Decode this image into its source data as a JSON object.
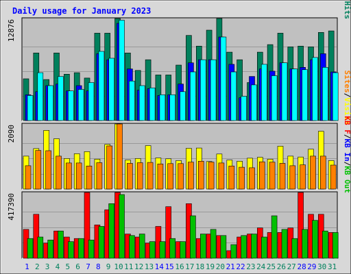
{
  "chart_data": {
    "type": "bar",
    "title": "Daily usage for January 2023",
    "categories": [
      "1",
      "2",
      "3",
      "4",
      "5",
      "6",
      "7",
      "8",
      "9",
      "10",
      "11",
      "12",
      "13",
      "14",
      "15",
      "16",
      "17",
      "18",
      "19",
      "20",
      "21",
      "22",
      "23",
      "24",
      "25",
      "26",
      "27",
      "28",
      "29",
      "30",
      "31"
    ],
    "weekend_days": [
      "1",
      "7",
      "8",
      "14",
      "15",
      "21",
      "22",
      "28",
      "29"
    ],
    "panels": [
      {
        "id": "hits",
        "ytick": "12876",
        "ymax": 12876,
        "series": [
          {
            "name": "Hits",
            "color": "#00805c",
            "values": [
              5500,
              8900,
              5400,
              8900,
              6100,
              6300,
              5600,
              11500,
              11500,
              15700,
              8900,
              6600,
              8000,
              6000,
              6000,
              7300,
              11200,
              9800,
              11900,
              15000,
              9000,
              8000,
              5000,
              9000,
              10000,
              11500,
              9700,
              9800,
              9700,
              11600,
              11800
            ]
          },
          {
            "name": "Files",
            "color": "#0000ff",
            "values": [
              3400,
              3800,
              4600,
              4800,
              3900,
              4600,
              3900,
              8800,
              8000,
              12800,
              6800,
              4000,
              4200,
              3300,
              3400,
              4800,
              7600,
              8000,
              8000,
              11000,
              7400,
              3000,
              5800,
              6800,
              6500,
              7600,
              6800,
              7000,
              8000,
              8800,
              6400
            ]
          },
          {
            "name": "Pages",
            "color": "#00ffff",
            "values": [
              3300,
              6300,
              4600,
              5800,
              3900,
              4100,
              5000,
              9100,
              8200,
              13200,
              5200,
              4600,
              4300,
              3400,
              3400,
              3800,
              6400,
              8000,
              8000,
              11000,
              6400,
              3200,
              4700,
              7400,
              5900,
              7600,
              6800,
              6700,
              8300,
              7000,
              6300
            ]
          }
        ]
      },
      {
        "id": "visits",
        "ytick": "2090",
        "ymax": 2090,
        "series": [
          {
            "name": "Visits",
            "color": "#ffff00",
            "values": [
              1100,
              1350,
              1960,
              1680,
              1020,
              1180,
              1250,
              1000,
              1490,
              2950,
              970,
              1020,
              1450,
              1040,
              1010,
              950,
              1360,
              1370,
              920,
              1170,
              970,
              930,
              1030,
              1060,
              1000,
              1430,
              1100,
              1070,
              1330,
              1930,
              950
            ]
          },
          {
            "name": "Sites",
            "color": "#ff8000",
            "values": [
              780,
              1290,
              1280,
              1100,
              870,
              870,
              770,
              880,
              1440,
              2880,
              860,
              880,
              890,
              840,
              850,
              850,
              900,
              930,
              900,
              870,
              770,
              730,
              710,
              910,
              900,
              860,
              780,
              810,
              1100,
              1100,
              800
            ]
          }
        ]
      },
      {
        "id": "kbytes",
        "ytick": "417390",
        "ymax": 417390,
        "series": [
          {
            "name": "KB F",
            "color": "#ff0000",
            "values": [
              190000,
              290000,
              100000,
              180000,
              140000,
              130000,
              460000,
              220000,
              320000,
              470000,
              160000,
              140000,
              100000,
              210000,
              340000,
              110000,
              360000,
              130000,
              160000,
              150000,
              50000,
              140000,
              160000,
              200000,
              170000,
              170000,
              200000,
              620000,
              290000,
              290000,
              170000
            ]
          },
          {
            "name": "KB In",
            "color": "#0000ff",
            "values": [
              0,
              0,
              0,
              0,
              0,
              0,
              0,
              0,
              0,
              0,
              0,
              0,
              0,
              0,
              0,
              0,
              0,
              0,
              0,
              0,
              0,
              0,
              0,
              0,
              0,
              0,
              0,
              0,
              0,
              0,
              0
            ]
          },
          {
            "name": "KB Out",
            "color": "#00c000",
            "values": [
              130000,
              140000,
              120000,
              180000,
              110000,
              130000,
              120000,
              210000,
              360000,
              420000,
              150000,
              160000,
              110000,
              110000,
              130000,
              110000,
              280000,
              160000,
              190000,
              150000,
              90000,
              150000,
              160000,
              140000,
              280000,
              190000,
              130000,
              190000,
              250000,
              180000,
              170000
            ]
          }
        ]
      }
    ],
    "legend": [
      {
        "labels": [
          "Pages",
          "Files",
          "Hits"
        ],
        "colors": [
          "#00ffff",
          "#0000ff",
          "#00805c"
        ]
      },
      {
        "labels": [
          "Sites",
          "Visits"
        ],
        "colors": [
          "#ff8000",
          "#ffff00"
        ]
      },
      {
        "labels": [
          "KB F",
          "KB In",
          "KB Out"
        ],
        "colors": [
          "#ff0000",
          "#0000ff",
          "#00c000"
        ]
      }
    ],
    "legend_separator": "/",
    "legend_placement": "right",
    "grid": true,
    "colors": {
      "background": "#d8d8d8",
      "plot_background": "#c0c0c0",
      "title": "#0000ff",
      "ytick": "#000000",
      "xtick_weekday": "#00805c",
      "xtick_weekend": "#0000ff",
      "grid": "#999999"
    }
  }
}
